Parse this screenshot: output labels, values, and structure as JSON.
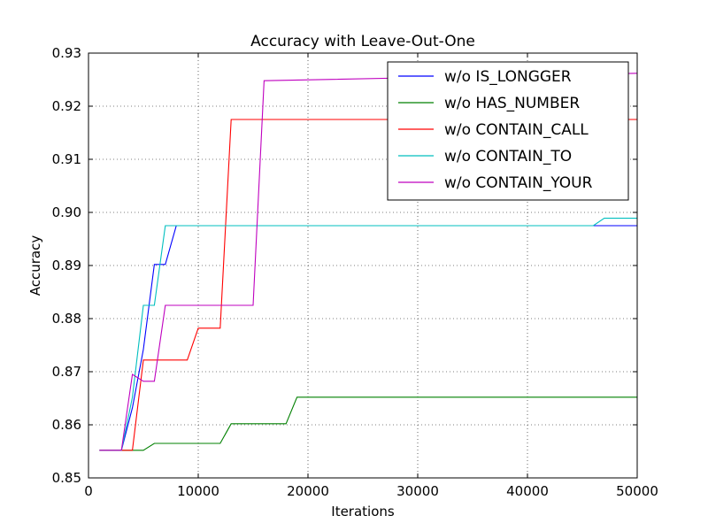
{
  "chart_data": {
    "type": "line",
    "title": "Accuracy with Leave-Out-One",
    "xlabel": "Iterations",
    "ylabel": "Accuracy",
    "xlim": [
      0,
      50000
    ],
    "ylim": [
      0.85,
      0.93
    ],
    "x_ticks": [
      0,
      10000,
      20000,
      30000,
      40000,
      50000
    ],
    "x_tick_labels": [
      "0",
      "10000",
      "20000",
      "30000",
      "40000",
      "50000"
    ],
    "y_ticks": [
      0.85,
      0.86,
      0.87,
      0.88,
      0.89,
      0.9,
      0.91,
      0.92,
      0.93
    ],
    "y_tick_labels": [
      "0.85",
      "0.86",
      "0.87",
      "0.88",
      "0.89",
      "0.90",
      "0.91",
      "0.92",
      "0.93"
    ],
    "grid": true,
    "legend_position": "top-right",
    "series": [
      {
        "name": "w/o IS_LONGGER",
        "color": "#0000ff",
        "points": [
          [
            1000,
            0.8552
          ],
          [
            3000,
            0.8552
          ],
          [
            4000,
            0.8632
          ],
          [
            5000,
            0.8742
          ],
          [
            6000,
            0.8902
          ],
          [
            7000,
            0.8902
          ],
          [
            8000,
            0.8975
          ],
          [
            46000,
            0.8975
          ],
          [
            50000,
            0.8975
          ]
        ]
      },
      {
        "name": "w/o HAS_NUMBER",
        "color": "#008000",
        "points": [
          [
            1000,
            0.8552
          ],
          [
            5000,
            0.8552
          ],
          [
            6000,
            0.8565
          ],
          [
            12000,
            0.8565
          ],
          [
            13000,
            0.8602
          ],
          [
            18000,
            0.8602
          ],
          [
            19000,
            0.8652
          ],
          [
            50000,
            0.8652
          ]
        ]
      },
      {
        "name": "w/o CONTAIN_CALL",
        "color": "#ff0000",
        "points": [
          [
            1000,
            0.8552
          ],
          [
            4000,
            0.8552
          ],
          [
            5000,
            0.8722
          ],
          [
            9000,
            0.8722
          ],
          [
            10000,
            0.8782
          ],
          [
            12000,
            0.8782
          ],
          [
            13000,
            0.9175
          ],
          [
            50000,
            0.9175
          ]
        ]
      },
      {
        "name": "w/o CONTAIN_TO",
        "color": "#00bfbf",
        "points": [
          [
            1000,
            0.8552
          ],
          [
            3000,
            0.8552
          ],
          [
            4000,
            0.8652
          ],
          [
            5000,
            0.8825
          ],
          [
            6000,
            0.8825
          ],
          [
            7000,
            0.8975
          ],
          [
            46000,
            0.8975
          ],
          [
            47000,
            0.8989
          ],
          [
            50000,
            0.8989
          ]
        ]
      },
      {
        "name": "w/o CONTAIN_YOUR",
        "color": "#bf00bf",
        "points": [
          [
            1000,
            0.8552
          ],
          [
            3000,
            0.8552
          ],
          [
            4000,
            0.8695
          ],
          [
            5000,
            0.8682
          ],
          [
            6000,
            0.8682
          ],
          [
            7000,
            0.8825
          ],
          [
            15000,
            0.8825
          ],
          [
            16000,
            0.9248
          ],
          [
            50000,
            0.9262
          ]
        ]
      }
    ]
  }
}
